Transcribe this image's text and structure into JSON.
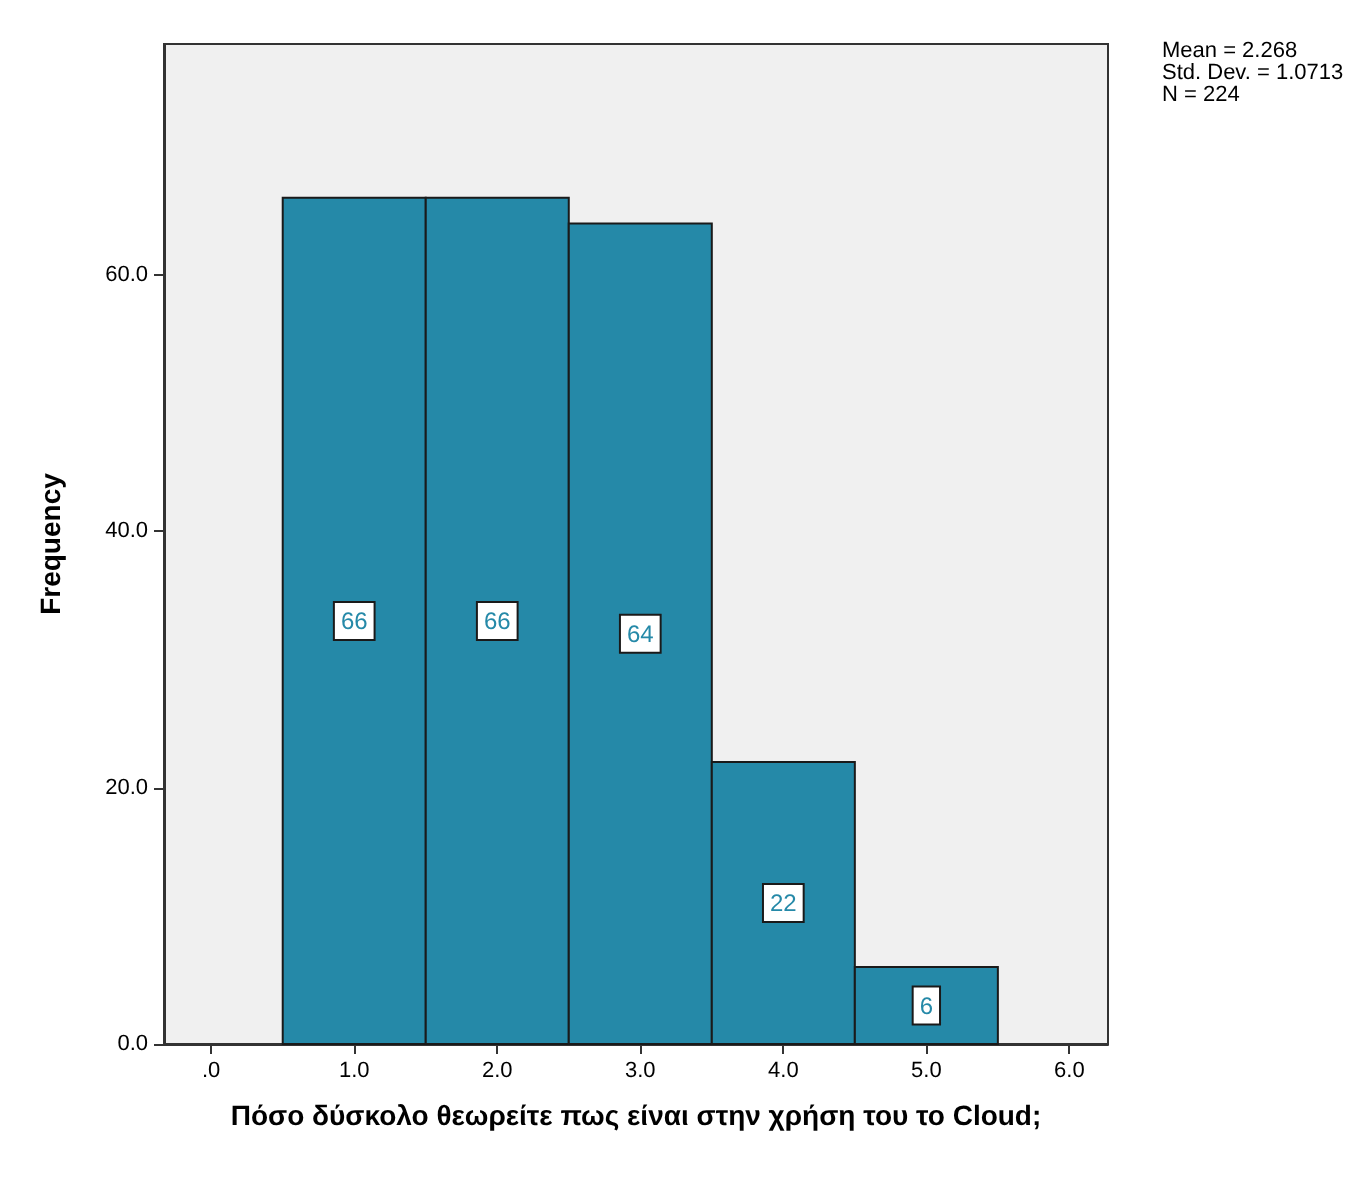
{
  "chart_data": {
    "type": "histogram",
    "xlabel": "Πόσο δύσκολο θεωρείτε πως είναι στην χρήση του το Cloud;",
    "ylabel": "Frequency",
    "bins": [
      0.5,
      1.5,
      2.5,
      3.5,
      4.5,
      5.5
    ],
    "values": [
      66,
      66,
      64,
      22,
      6
    ],
    "color": "#2589a8",
    "data_labels": true,
    "xlim": [
      -0.33,
      6.27
    ],
    "xticks": [
      {
        "value": 0,
        "label": ".0"
      },
      {
        "value": 1,
        "label": "1.0"
      },
      {
        "value": 2,
        "label": "2.0"
      },
      {
        "value": 3,
        "label": "3.0"
      },
      {
        "value": 4,
        "label": "4.0"
      },
      {
        "value": 5,
        "label": "5.0"
      },
      {
        "value": 6,
        "label": "6.0"
      }
    ],
    "ylim": [
      0,
      78
    ],
    "yticks": [
      {
        "value": 0,
        "label": "0.0"
      },
      {
        "value": 20,
        "label": "20.0"
      },
      {
        "value": 40,
        "label": "40.0"
      },
      {
        "value": 60,
        "label": "60.0"
      }
    ],
    "grid": false,
    "annotations": [
      "Mean = 2.268",
      "Std. Dev. = 1.0713",
      "N = 224"
    ]
  }
}
